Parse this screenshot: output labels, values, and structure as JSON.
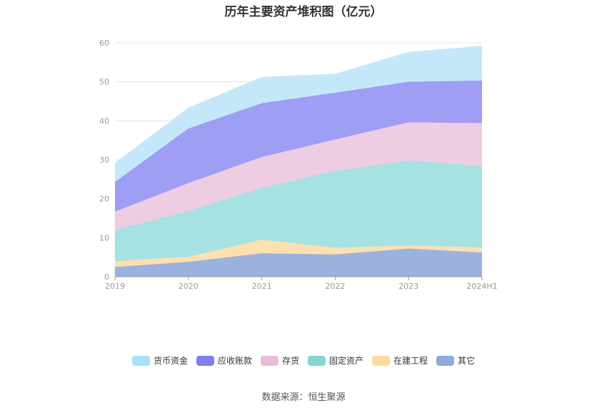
{
  "chart_data": {
    "type": "area",
    "stacked": true,
    "title": "历年主要资产堆积图（亿元）",
    "categories": [
      "2019",
      "2020",
      "2021",
      "2022",
      "2023",
      "2024H1"
    ],
    "ylim": [
      0,
      60
    ],
    "yticks": [
      0,
      10,
      20,
      30,
      40,
      50,
      60
    ],
    "grid": true,
    "legend_position": "bottom",
    "series": [
      {
        "name": "其它",
        "color": "#9bb1df",
        "values": [
          2.5,
          3.8,
          6.0,
          5.7,
          7.2,
          6.2
        ]
      },
      {
        "name": "在建工程",
        "color": "#fde0b0",
        "values": [
          1.5,
          1.3,
          3.5,
          1.7,
          0.8,
          1.3
        ]
      },
      {
        "name": "固定资产",
        "color": "#a6e2e1",
        "values": [
          8.0,
          11.7,
          13.3,
          19.8,
          21.8,
          20.9
        ]
      },
      {
        "name": "存货",
        "color": "#eecde3",
        "values": [
          4.7,
          7.2,
          7.9,
          8.0,
          9.8,
          11.0
        ]
      },
      {
        "name": "应收账款",
        "color": "#9e9ef5",
        "values": [
          7.6,
          14.0,
          13.8,
          12.0,
          10.4,
          10.9
        ]
      },
      {
        "name": "货币资金",
        "color": "#c4e8fa",
        "values": [
          4.7,
          5.2,
          6.6,
          4.7,
          7.5,
          8.8
        ]
      }
    ]
  },
  "legend": [
    {
      "label": "货币资金",
      "color": "#a8e0fb"
    },
    {
      "label": "应收账款",
      "color": "#7f7ff0"
    },
    {
      "label": "存货",
      "color": "#e9bcdb"
    },
    {
      "label": "固定资产",
      "color": "#86d6d4"
    },
    {
      "label": "在建工程",
      "color": "#fdd9a0"
    },
    {
      "label": "其它",
      "color": "#8ea9dc"
    }
  ],
  "source": "数据来源：恒生聚源"
}
